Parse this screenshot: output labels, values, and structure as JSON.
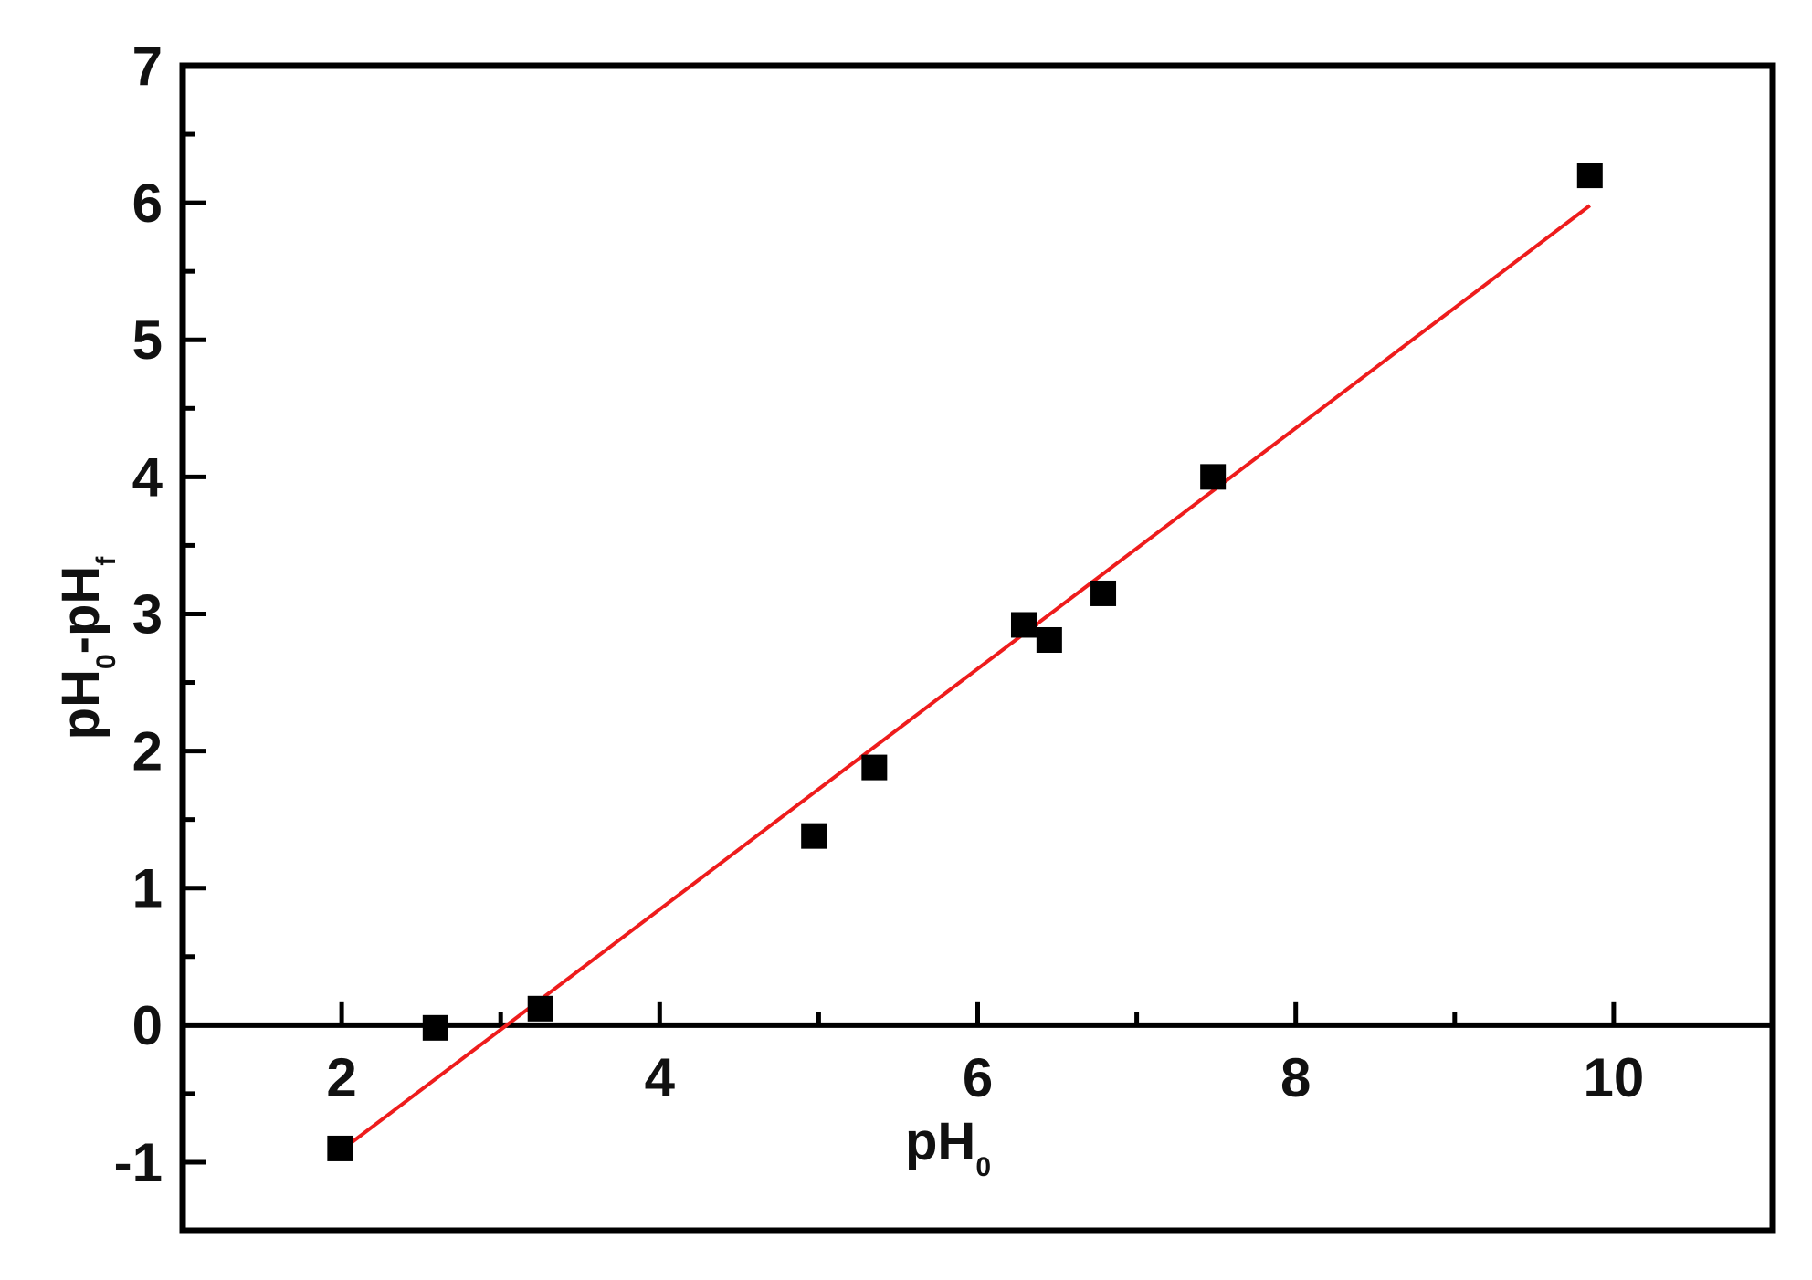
{
  "chart_data": {
    "type": "scatter",
    "xlim": [
      1,
      11
    ],
    "ylim": [
      -1.5,
      7
    ],
    "xticks": [
      2,
      4,
      6,
      8,
      10
    ],
    "xtick_labels": [
      "2",
      "4",
      "6",
      "8",
      "10"
    ],
    "yticks": [
      -1,
      0,
      1,
      2,
      3,
      4,
      5,
      6,
      7
    ],
    "ytick_labels": [
      "-1",
      "0",
      "1",
      "2",
      "3",
      "4",
      "5",
      "6",
      "7"
    ],
    "xlabel": "pH",
    "xlabel_subscript": "0",
    "ylabel_parts": [
      {
        "text": "pH",
        "sub": "0"
      },
      {
        "text": "-pH",
        "sub": "f"
      }
    ],
    "grid": false,
    "legend": "none",
    "zero_line": true,
    "series": [
      {
        "kind": "points",
        "marker": "square",
        "color": "#000000",
        "x": [
          1.99,
          2.59,
          3.25,
          4.97,
          5.35,
          6.29,
          6.45,
          6.79,
          7.48,
          9.85
        ],
        "y": [
          -0.9,
          -0.02,
          0.12,
          1.38,
          1.88,
          2.92,
          2.81,
          3.15,
          4.0,
          6.2
        ]
      },
      {
        "kind": "fit_line",
        "color": "#ee1c1c",
        "x": [
          1.99,
          9.85
        ],
        "y": [
          -0.92,
          5.98
        ]
      }
    ]
  }
}
